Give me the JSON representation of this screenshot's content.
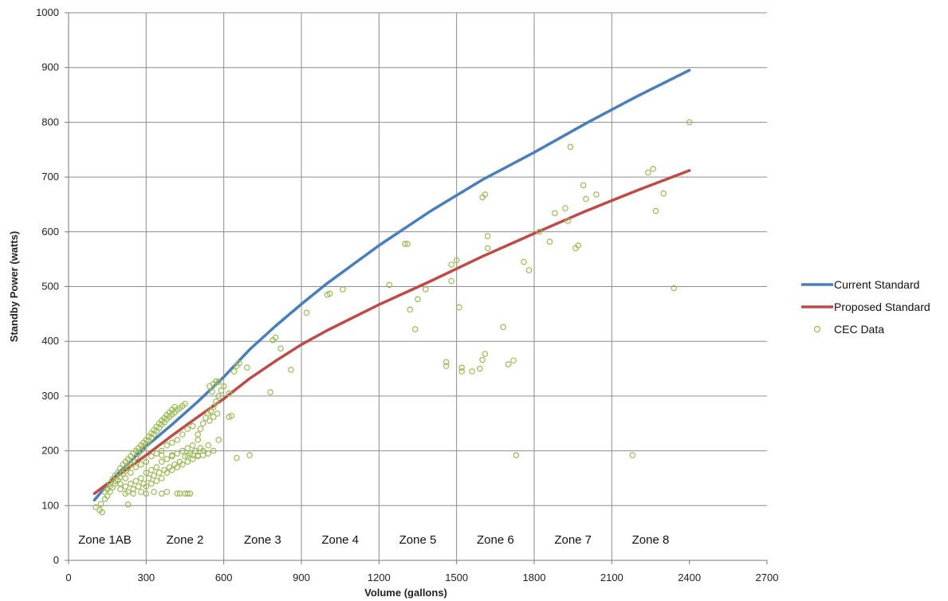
{
  "chart_data": {
    "type": "scatter",
    "xlabel": "Volume (gallons)",
    "ylabel": "Standby Power (watts)",
    "xlim": [
      0,
      2700
    ],
    "ylim": [
      0,
      1000
    ],
    "x_ticks": [
      "0",
      "300",
      "600",
      "900",
      "1200",
      "1500",
      "1800",
      "2100",
      "2400",
      "2700"
    ],
    "y_ticks": [
      "0",
      "100",
      "200",
      "300",
      "400",
      "500",
      "600",
      "700",
      "800",
      "900",
      "1000"
    ],
    "grid": true,
    "legend_position": "right",
    "zones": [
      {
        "label": "Zone 1AB",
        "x": 140
      },
      {
        "label": "Zone 2",
        "x": 450
      },
      {
        "label": "Zone 3",
        "x": 750
      },
      {
        "label": "Zone 4",
        "x": 1050
      },
      {
        "label": "Zone 5",
        "x": 1350
      },
      {
        "label": "Zone 6",
        "x": 1650
      },
      {
        "label": "Zone 7",
        "x": 1950
      },
      {
        "label": "Zone 8",
        "x": 2250
      }
    ],
    "zone_boundaries": [
      300,
      600,
      900,
      1200,
      1500,
      1800,
      2100
    ],
    "series": [
      {
        "name": "Current Standard",
        "kind": "line",
        "color": "#4a7ebb",
        "x": [
          100,
          150,
          200,
          250,
          300,
          400,
          500,
          600,
          700,
          800,
          900,
          1000,
          1200,
          1400,
          1600,
          1800,
          2000,
          2200,
          2400
        ],
        "y": [
          110,
          138,
          163,
          186,
          208,
          248,
          290,
          335,
          385,
          428,
          468,
          506,
          575,
          638,
          695,
          745,
          798,
          848,
          895
        ]
      },
      {
        "name": "Proposed Standard",
        "kind": "line",
        "color": "#be4b48",
        "x": [
          100,
          150,
          200,
          250,
          300,
          400,
          500,
          600,
          700,
          800,
          900,
          1000,
          1200,
          1400,
          1600,
          1800,
          2000,
          2200,
          2400
        ],
        "y": [
          122,
          140,
          158,
          175,
          192,
          228,
          262,
          295,
          332,
          364,
          394,
          420,
          467,
          510,
          555,
          597,
          638,
          676,
          712
        ]
      },
      {
        "name": "CEC Data",
        "kind": "scatter",
        "color": "#9bbb59",
        "points": [
          [
            105,
            97
          ],
          [
            120,
            92
          ],
          [
            130,
            88
          ],
          [
            125,
            103
          ],
          [
            140,
            112
          ],
          [
            150,
            118
          ],
          [
            160,
            125
          ],
          [
            170,
            133
          ],
          [
            180,
            140
          ],
          [
            190,
            146
          ],
          [
            200,
            152
          ],
          [
            210,
            158
          ],
          [
            220,
            163
          ],
          [
            230,
            170
          ],
          [
            240,
            176
          ],
          [
            250,
            182
          ],
          [
            260,
            188
          ],
          [
            270,
            194
          ],
          [
            280,
            200
          ],
          [
            290,
            206
          ],
          [
            300,
            212
          ],
          [
            310,
            218
          ],
          [
            320,
            224
          ],
          [
            330,
            230
          ],
          [
            340,
            236
          ],
          [
            350,
            242
          ],
          [
            360,
            248
          ],
          [
            370,
            252
          ],
          [
            380,
            258
          ],
          [
            390,
            262
          ],
          [
            400,
            266
          ],
          [
            410,
            270
          ],
          [
            420,
            275
          ],
          [
            430,
            278
          ],
          [
            440,
            282
          ],
          [
            450,
            286
          ],
          [
            150,
            130
          ],
          [
            160,
            140
          ],
          [
            170,
            148
          ],
          [
            180,
            155
          ],
          [
            190,
            160
          ],
          [
            200,
            168
          ],
          [
            210,
            175
          ],
          [
            220,
            180
          ],
          [
            230,
            185
          ],
          [
            240,
            190
          ],
          [
            250,
            196
          ],
          [
            260,
            200
          ],
          [
            270,
            205
          ],
          [
            280,
            210
          ],
          [
            290,
            215
          ],
          [
            300,
            220
          ],
          [
            310,
            226
          ],
          [
            320,
            232
          ],
          [
            330,
            238
          ],
          [
            340,
            244
          ],
          [
            350,
            250
          ],
          [
            360,
            255
          ],
          [
            370,
            260
          ],
          [
            380,
            265
          ],
          [
            390,
            270
          ],
          [
            400,
            275
          ],
          [
            410,
            280
          ],
          [
            140,
            125
          ],
          [
            160,
            135
          ],
          [
            180,
            145
          ],
          [
            200,
            140
          ],
          [
            220,
            150
          ],
          [
            240,
            160
          ],
          [
            260,
            170
          ],
          [
            280,
            175
          ],
          [
            300,
            180
          ],
          [
            320,
            190
          ],
          [
            340,
            195
          ],
          [
            360,
            200
          ],
          [
            380,
            210
          ],
          [
            400,
            215
          ],
          [
            420,
            220
          ],
          [
            440,
            230
          ],
          [
            460,
            240
          ],
          [
            480,
            245
          ],
          [
            200,
            130
          ],
          [
            220,
            135
          ],
          [
            240,
            140
          ],
          [
            260,
            145
          ],
          [
            280,
            150
          ],
          [
            300,
            160
          ],
          [
            320,
            165
          ],
          [
            340,
            170
          ],
          [
            360,
            180
          ],
          [
            380,
            185
          ],
          [
            400,
            190
          ],
          [
            420,
            195
          ],
          [
            440,
            200
          ],
          [
            460,
            205
          ],
          [
            480,
            210
          ],
          [
            500,
            220
          ],
          [
            230,
            125
          ],
          [
            250,
            130
          ],
          [
            270,
            135
          ],
          [
            290,
            140
          ],
          [
            310,
            150
          ],
          [
            330,
            155
          ],
          [
            350,
            160
          ],
          [
            370,
            165
          ],
          [
            390,
            170
          ],
          [
            410,
            175
          ],
          [
            430,
            180
          ],
          [
            450,
            190
          ],
          [
            470,
            195
          ],
          [
            490,
            200
          ],
          [
            510,
            205
          ],
          [
            300,
            135
          ],
          [
            320,
            140
          ],
          [
            340,
            145
          ],
          [
            360,
            150
          ],
          [
            380,
            160
          ],
          [
            400,
            165
          ],
          [
            420,
            170
          ],
          [
            440,
            175
          ],
          [
            460,
            180
          ],
          [
            480,
            185
          ],
          [
            500,
            190
          ],
          [
            520,
            200
          ],
          [
            540,
            210
          ],
          [
            280,
            125
          ],
          [
            330,
            125
          ],
          [
            380,
            125
          ],
          [
            430,
            122
          ],
          [
            450,
            122
          ],
          [
            460,
            122
          ],
          [
            470,
            122
          ],
          [
            420,
            122
          ],
          [
            360,
            122
          ],
          [
            300,
            122
          ],
          [
            250,
            122
          ],
          [
            220,
            122
          ],
          [
            230,
            102
          ],
          [
            360,
            192
          ],
          [
            400,
            192
          ],
          [
            460,
            192
          ],
          [
            480,
            192
          ],
          [
            500,
            192
          ],
          [
            520,
            192
          ],
          [
            540,
            195
          ],
          [
            560,
            200
          ],
          [
            580,
            220
          ],
          [
            500,
            230
          ],
          [
            510,
            240
          ],
          [
            520,
            250
          ],
          [
            530,
            260
          ],
          [
            540,
            268
          ],
          [
            550,
            272
          ],
          [
            560,
            280
          ],
          [
            570,
            290
          ],
          [
            580,
            300
          ],
          [
            590,
            310
          ],
          [
            600,
            318
          ],
          [
            560,
            322
          ],
          [
            570,
            327
          ],
          [
            580,
            326
          ],
          [
            545,
            318
          ],
          [
            555,
            308
          ],
          [
            575,
            268
          ],
          [
            560,
            262
          ],
          [
            545,
            255
          ],
          [
            620,
            262
          ],
          [
            630,
            264
          ],
          [
            640,
            345
          ],
          [
            650,
            355
          ],
          [
            660,
            360
          ],
          [
            690,
            352
          ],
          [
            700,
            192
          ],
          [
            650,
            187
          ],
          [
            780,
            307
          ],
          [
            790,
            402
          ],
          [
            800,
            407
          ],
          [
            820,
            387
          ],
          [
            860,
            348
          ],
          [
            620,
            305
          ],
          [
            920,
            452
          ],
          [
            1000,
            485
          ],
          [
            1010,
            487
          ],
          [
            1060,
            495
          ],
          [
            1240,
            503
          ],
          [
            1300,
            578
          ],
          [
            1310,
            578
          ],
          [
            1320,
            458
          ],
          [
            1340,
            422
          ],
          [
            1350,
            477
          ],
          [
            1380,
            495
          ],
          [
            1460,
            362
          ],
          [
            1460,
            355
          ],
          [
            1480,
            510
          ],
          [
            1480,
            540
          ],
          [
            1500,
            548
          ],
          [
            1510,
            462
          ],
          [
            1520,
            352
          ],
          [
            1520,
            345
          ],
          [
            1560,
            345
          ],
          [
            1590,
            350
          ],
          [
            1600,
            366
          ],
          [
            1610,
            377
          ],
          [
            1620,
            570
          ],
          [
            1620,
            592
          ],
          [
            1600,
            663
          ],
          [
            1610,
            668
          ],
          [
            1680,
            426
          ],
          [
            1700,
            358
          ],
          [
            1720,
            365
          ],
          [
            1730,
            192
          ],
          [
            1760,
            545
          ],
          [
            1780,
            530
          ],
          [
            1820,
            600
          ],
          [
            1860,
            582
          ],
          [
            1880,
            634
          ],
          [
            1920,
            643
          ],
          [
            1930,
            620
          ],
          [
            1940,
            755
          ],
          [
            1960,
            570
          ],
          [
            1970,
            575
          ],
          [
            1990,
            685
          ],
          [
            2000,
            660
          ],
          [
            2040,
            668
          ],
          [
            2180,
            192
          ],
          [
            2240,
            708
          ],
          [
            2260,
            715
          ],
          [
            2270,
            638
          ],
          [
            2300,
            670
          ],
          [
            2340,
            497
          ],
          [
            2400,
            800
          ]
        ]
      }
    ]
  }
}
